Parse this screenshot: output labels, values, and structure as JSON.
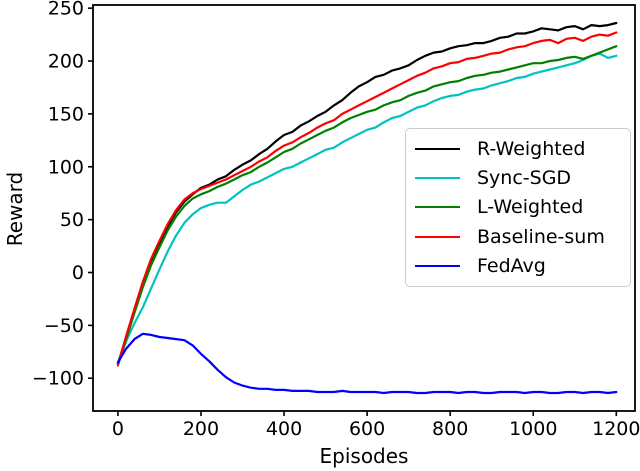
{
  "chart_data": {
    "type": "line",
    "title": "",
    "xlabel": "Episodes",
    "ylabel": "Reward",
    "xlim": [
      -60,
      1245
    ],
    "ylim": [
      -131,
      253
    ],
    "xticks": [
      0,
      200,
      400,
      600,
      800,
      1000,
      1200
    ],
    "yticks": [
      -100,
      -50,
      0,
      50,
      100,
      150,
      200,
      250
    ],
    "grid": false,
    "legend_position": "center right",
    "axis_color": "#000000",
    "x": [
      0,
      20,
      40,
      60,
      80,
      100,
      120,
      140,
      160,
      180,
      200,
      220,
      240,
      260,
      280,
      300,
      320,
      340,
      360,
      380,
      400,
      420,
      440,
      460,
      480,
      500,
      520,
      540,
      560,
      580,
      600,
      620,
      640,
      660,
      680,
      700,
      720,
      740,
      760,
      780,
      800,
      820,
      840,
      860,
      880,
      900,
      920,
      940,
      960,
      980,
      1000,
      1020,
      1040,
      1060,
      1080,
      1100,
      1120,
      1140,
      1160,
      1180,
      1200
    ],
    "series": [
      {
        "name": "R-Weighted",
        "color": "#000000",
        "values": [
          -86,
          -62,
          -36,
          -12,
          10,
          28,
          44,
          57,
          67,
          74,
          80,
          83,
          88,
          91,
          97,
          102,
          106,
          112,
          117,
          124,
          130,
          133,
          139,
          143,
          148,
          152,
          158,
          163,
          170,
          176,
          180,
          185,
          187,
          191,
          193,
          196,
          201,
          205,
          208,
          209,
          212,
          214,
          215,
          217,
          217,
          219,
          222,
          223,
          226,
          226,
          228,
          231,
          230,
          229,
          232,
          233,
          230,
          234,
          233,
          234,
          236
        ]
      },
      {
        "name": "Sync-SGD",
        "color": "#00c2c2",
        "values": [
          -85,
          -65,
          -48,
          -33,
          -15,
          3,
          20,
          35,
          47,
          55,
          61,
          64,
          66,
          66,
          72,
          78,
          83,
          86,
          90,
          94,
          98,
          100,
          104,
          108,
          112,
          116,
          118,
          123,
          127,
          131,
          135,
          137,
          142,
          146,
          148,
          152,
          156,
          158,
          162,
          165,
          167,
          168,
          171,
          173,
          174,
          177,
          179,
          181,
          184,
          185,
          188,
          190,
          192,
          194,
          196,
          198,
          201,
          205,
          207,
          203,
          205
        ]
      },
      {
        "name": "L-Weighted",
        "color": "#008000",
        "values": [
          -88,
          -63,
          -38,
          -14,
          7,
          24,
          40,
          53,
          63,
          70,
          74,
          77,
          81,
          84,
          88,
          92,
          95,
          100,
          104,
          109,
          114,
          117,
          122,
          126,
          130,
          134,
          137,
          142,
          146,
          149,
          152,
          154,
          158,
          161,
          163,
          167,
          170,
          172,
          176,
          178,
          180,
          181,
          184,
          186,
          187,
          189,
          190,
          192,
          194,
          196,
          198,
          198,
          200,
          201,
          203,
          204,
          202,
          205,
          208,
          211,
          214
        ]
      },
      {
        "name": "Baseline-sum",
        "color": "#ff0000",
        "values": [
          -87,
          -60,
          -34,
          -9,
          13,
          30,
          46,
          59,
          69,
          75,
          79,
          82,
          85,
          88,
          92,
          96,
          100,
          105,
          109,
          115,
          120,
          123,
          128,
          132,
          137,
          141,
          144,
          150,
          154,
          158,
          162,
          166,
          170,
          174,
          178,
          182,
          186,
          189,
          193,
          195,
          198,
          199,
          202,
          203,
          205,
          207,
          208,
          211,
          213,
          214,
          217,
          219,
          220,
          217,
          221,
          222,
          219,
          223,
          225,
          224,
          227
        ]
      },
      {
        "name": "FedAvg",
        "color": "#0000ff",
        "values": [
          -85,
          -72,
          -63,
          -58,
          -59,
          -61,
          -62,
          -63,
          -64,
          -69,
          -77,
          -84,
          -92,
          -99,
          -104,
          -107,
          -109,
          -110,
          -110,
          -111,
          -111,
          -112,
          -112,
          -112,
          -113,
          -113,
          -113,
          -112,
          -113,
          -113,
          -113,
          -113,
          -114,
          -113,
          -113,
          -113,
          -114,
          -114,
          -113,
          -113,
          -113,
          -114,
          -113,
          -113,
          -114,
          -114,
          -113,
          -113,
          -113,
          -114,
          -113,
          -113,
          -114,
          -114,
          -113,
          -113,
          -114,
          -113,
          -113,
          -114,
          -113
        ]
      }
    ]
  }
}
